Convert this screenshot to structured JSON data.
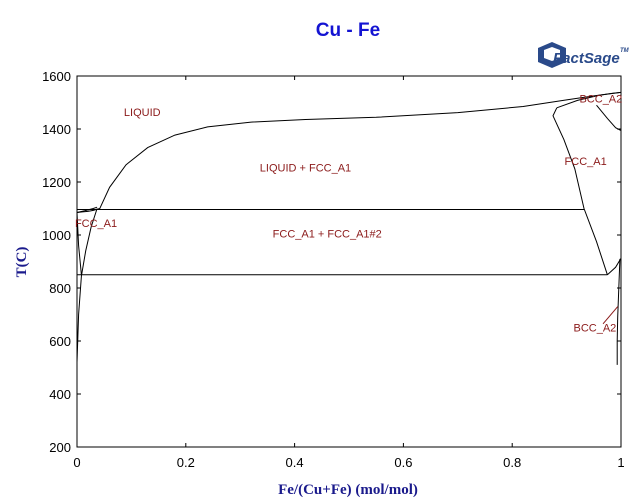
{
  "title": "Cu - Fe",
  "logo": {
    "text": "FactSage",
    "mark": "TM"
  },
  "chart_data": {
    "type": "phase-diagram",
    "title": "Cu - Fe",
    "xlabel": "Fe/(Cu+Fe) (mol/mol)",
    "ylabel": "T(C)",
    "xlim": [
      0,
      1
    ],
    "ylim": [
      200,
      1600
    ],
    "xticks": [
      "0",
      "0.2",
      "0.4",
      "0.6",
      "0.8",
      "1"
    ],
    "yticks": [
      "200",
      "400",
      "600",
      "800",
      "1000",
      "1200",
      "1400",
      "1600"
    ],
    "regions": [
      {
        "label": "LIQUID",
        "x": 0.12,
        "y": 1450
      },
      {
        "label": "LIQUID + FCC_A1",
        "x": 0.42,
        "y": 1240
      },
      {
        "label": "FCC_A1",
        "x": 0.035,
        "y": 1030
      },
      {
        "label": "FCC_A1 + FCC_A1#2",
        "x": 0.46,
        "y": 990
      },
      {
        "label": "FCC_A1",
        "x": 0.935,
        "y": 1265
      },
      {
        "label": "BCC_A2",
        "x": 0.963,
        "y": 1500
      },
      {
        "label": "BCC_A2",
        "x": 0.952,
        "y": 635
      }
    ],
    "isotherms": [
      {
        "name": "monotectic",
        "y": 1096,
        "x_from": 0.0,
        "x_to": 0.932
      },
      {
        "name": "eutectoid",
        "y": 850,
        "x_from": 0.0,
        "x_to": 0.975
      }
    ],
    "series": [
      {
        "points": [
          [
            0.0,
            1085
          ],
          [
            0.01,
            1087
          ],
          [
            0.02,
            1089
          ],
          [
            0.03,
            1093
          ],
          [
            0.042,
            1100
          ],
          [
            0.06,
            1180
          ],
          [
            0.09,
            1265
          ],
          [
            0.13,
            1330
          ],
          [
            0.18,
            1377
          ],
          [
            0.24,
            1408
          ],
          [
            0.32,
            1426
          ],
          [
            0.42,
            1436
          ],
          [
            0.55,
            1444
          ],
          [
            0.7,
            1462
          ],
          [
            0.82,
            1485
          ],
          [
            0.9,
            1510
          ],
          [
            0.95,
            1525
          ],
          [
            0.98,
            1533
          ],
          [
            1.0,
            1538
          ]
        ]
      },
      {
        "points": [
          [
            0.0,
            1085
          ],
          [
            0.015,
            1092
          ],
          [
            0.03,
            1100
          ],
          [
            0.037,
            1105
          ]
        ]
      },
      {
        "points": [
          [
            0.0,
            520
          ],
          [
            0.003,
            700
          ],
          [
            0.008,
            845
          ],
          [
            0.016,
            940
          ],
          [
            0.026,
            1030
          ],
          [
            0.037,
            1100
          ]
        ]
      },
      {
        "points": [
          [
            0.0,
            1085
          ],
          [
            0.003,
            960
          ],
          [
            0.008,
            850
          ]
        ]
      },
      {
        "points": [
          [
            0.882,
            1480
          ],
          [
            0.875,
            1450
          ],
          [
            0.895,
            1360
          ],
          [
            0.915,
            1250
          ],
          [
            0.932,
            1100
          ],
          [
            0.955,
            975
          ],
          [
            0.975,
            850
          ]
        ]
      },
      {
        "points": [
          [
            0.882,
            1480
          ],
          [
            0.92,
            1508
          ],
          [
            0.96,
            1527
          ],
          [
            0.985,
            1535
          ],
          [
            1.0,
            1538
          ]
        ]
      },
      {
        "points": [
          [
            0.955,
            1490
          ],
          [
            0.975,
            1440
          ],
          [
            0.99,
            1405
          ],
          [
            1.0,
            1394
          ]
        ]
      },
      {
        "points": [
          [
            0.975,
            850
          ],
          [
            0.99,
            878
          ],
          [
            1.0,
            912
          ]
        ]
      },
      {
        "points": [
          [
            0.998,
            910
          ],
          [
            0.996,
            800
          ],
          [
            0.994,
            690
          ],
          [
            0.993,
            600
          ],
          [
            0.993,
            510
          ]
        ]
      }
    ]
  }
}
